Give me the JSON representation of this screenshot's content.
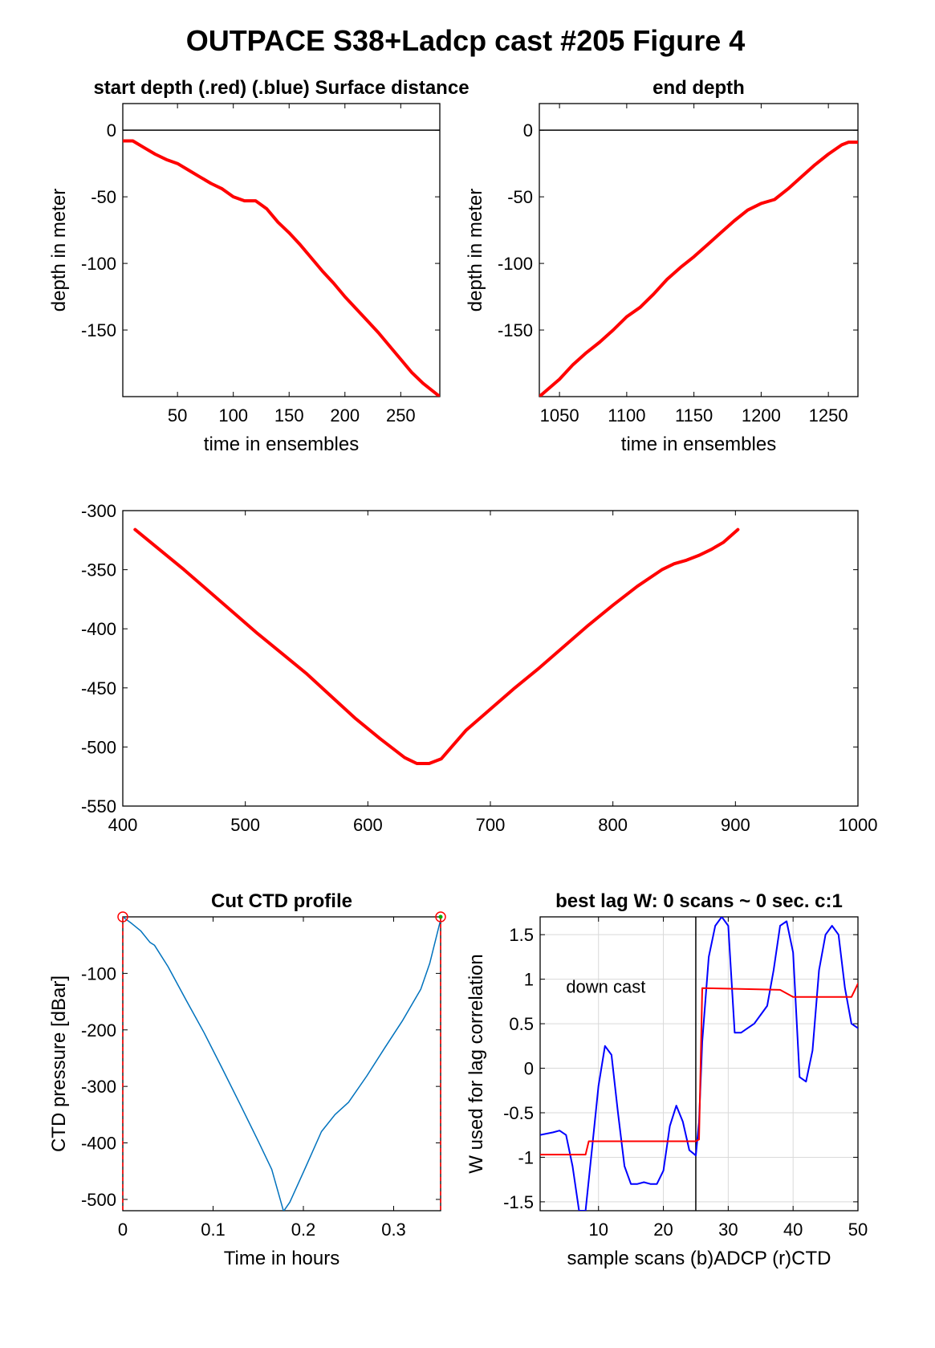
{
  "figure_title": "OUTPACE S38+Ladcp cast #205   Figure 4",
  "colors": {
    "red": "#ff0000",
    "blue": "#0000ff",
    "ctd": "#0072bd",
    "grid": "#d9d9d9",
    "green": "#00aa00"
  },
  "chart_data": [
    {
      "id": "p1",
      "type": "line",
      "title": "start depth (.red) (.blue) Surface distance",
      "xlabel": "time in ensembles",
      "ylabel": "depth in meter",
      "xlim": [
        1,
        285
      ],
      "ylim": [
        -200,
        20
      ],
      "xticks": [
        50,
        100,
        150,
        200,
        250
      ],
      "yticks": [
        0,
        -50,
        -100,
        -150
      ],
      "ref_line_y": 0,
      "series": [
        {
          "color": "red",
          "width": 4,
          "x": [
            1,
            10,
            20,
            30,
            40,
            50,
            60,
            70,
            80,
            90,
            100,
            110,
            120,
            130,
            140,
            150,
            160,
            170,
            180,
            190,
            200,
            210,
            220,
            230,
            240,
            250,
            260,
            270,
            285
          ],
          "y": [
            -8,
            -8,
            -13,
            -18,
            -22,
            -25,
            -30,
            -35,
            -40,
            -44,
            -50,
            -53,
            -53,
            -59,
            -69,
            -77,
            -86,
            -96,
            -106,
            -115,
            -125,
            -134,
            -143,
            -152,
            -162,
            -172,
            -182,
            -190,
            -200
          ]
        }
      ]
    },
    {
      "id": "p2",
      "type": "line",
      "title": "end depth",
      "xlabel": "time in ensembles",
      "ylabel": "depth in meter",
      "xlim": [
        1035,
        1272
      ],
      "ylim": [
        -200,
        20
      ],
      "xticks": [
        1050,
        1100,
        1150,
        1200,
        1250
      ],
      "yticks": [
        0,
        -50,
        -100,
        -150
      ],
      "ref_line_y": 0,
      "series": [
        {
          "color": "red",
          "width": 4,
          "x": [
            1035,
            1050,
            1060,
            1070,
            1080,
            1090,
            1100,
            1110,
            1120,
            1130,
            1140,
            1150,
            1160,
            1170,
            1180,
            1190,
            1200,
            1210,
            1220,
            1230,
            1240,
            1250,
            1260,
            1265,
            1272
          ],
          "y": [
            -200,
            -187,
            -176,
            -167,
            -159,
            -150,
            -140,
            -133,
            -123,
            -112,
            -103,
            -95,
            -86,
            -77,
            -68,
            -60,
            -55,
            -52,
            -44,
            -35,
            -26,
            -18,
            -11,
            -9,
            -9
          ]
        }
      ]
    },
    {
      "id": "p3",
      "type": "line",
      "title": "",
      "xlabel": "",
      "ylabel": "",
      "xlim": [
        400,
        1000
      ],
      "ylim": [
        -550,
        -300
      ],
      "xticks": [
        400,
        500,
        600,
        700,
        800,
        900,
        1000
      ],
      "yticks": [
        -300,
        -350,
        -400,
        -450,
        -500,
        -550
      ],
      "series": [
        {
          "color": "red",
          "width": 4,
          "x": [
            410,
            430,
            450,
            470,
            490,
            510,
            530,
            550,
            570,
            590,
            610,
            630,
            640,
            650,
            660,
            680,
            700,
            720,
            740,
            760,
            780,
            800,
            820,
            840,
            850,
            860,
            870,
            880,
            890,
            902
          ],
          "y": [
            -316,
            -333,
            -350,
            -368,
            -386,
            -404,
            -421,
            -438,
            -457,
            -476,
            -493,
            -509,
            -514,
            -514,
            -510,
            -486,
            -468,
            -450,
            -433,
            -415,
            -397,
            -380,
            -364,
            -350,
            -345,
            -342,
            -338,
            -333,
            -327,
            -316
          ]
        }
      ]
    },
    {
      "id": "p4",
      "type": "line",
      "title": "Cut CTD profile",
      "xlabel": "Time in hours",
      "ylabel": "CTD pressure [dBar]",
      "xlim": [
        0,
        0.352
      ],
      "ylim": [
        -520,
        0
      ],
      "xticks": [
        0,
        0.1,
        0.2,
        0.3
      ],
      "yticks": [
        -100,
        -200,
        -300,
        -400,
        -500
      ],
      "vlines": [
        0,
        0.352
      ],
      "markers": [
        {
          "x": 0,
          "y": 0,
          "color": "red"
        },
        {
          "x": 0.352,
          "y": 0,
          "color": "red"
        }
      ],
      "series": [
        {
          "color": "ctd",
          "width": 1.5,
          "x": [
            0,
            0.01,
            0.02,
            0.03,
            0.035,
            0.05,
            0.07,
            0.09,
            0.11,
            0.13,
            0.15,
            0.165,
            0.178,
            0.185,
            0.2,
            0.22,
            0.235,
            0.25,
            0.27,
            0.29,
            0.31,
            0.33,
            0.34,
            0.352
          ],
          "y": [
            0,
            -12,
            -25,
            -45,
            -50,
            -88,
            -147,
            -205,
            -268,
            -332,
            -397,
            -447,
            -521,
            -505,
            -452,
            -380,
            -350,
            -328,
            -282,
            -232,
            -183,
            -128,
            -82,
            -5
          ]
        }
      ]
    },
    {
      "id": "p5",
      "type": "line",
      "title": "best lag W: 0 scans ~ 0 sec.  c:1",
      "xlabel": "sample scans (b)ADCP (r)CTD",
      "ylabel": "W used for lag correlation",
      "xlim": [
        1,
        50
      ],
      "ylim": [
        -1.6,
        1.7
      ],
      "xticks": [
        10,
        20,
        30,
        40,
        50
      ],
      "yticks": [
        1.5,
        1,
        0.5,
        0,
        -0.5,
        -1,
        -1.5
      ],
      "grid": true,
      "vline_x": 25,
      "annotation": "down cast",
      "series": [
        {
          "color": "blue",
          "width": 2,
          "x": [
            1,
            3,
            4,
            5,
            6,
            7,
            8,
            9,
            10,
            11,
            12,
            13,
            14,
            15,
            16,
            17,
            18,
            19,
            20,
            21,
            22,
            23,
            24,
            25,
            25.5,
            26,
            27,
            28,
            29,
            30,
            31,
            32,
            33,
            34,
            35,
            36,
            37,
            38,
            39,
            40,
            41,
            42,
            43,
            44,
            45,
            46,
            47,
            48,
            49,
            50
          ],
          "y": [
            -0.75,
            -0.72,
            -0.7,
            -0.75,
            -1.1,
            -1.6,
            -1.6,
            -0.9,
            -0.2,
            0.25,
            0.15,
            -0.5,
            -1.1,
            -1.3,
            -1.3,
            -1.28,
            -1.3,
            -1.3,
            -1.15,
            -0.65,
            -0.42,
            -0.6,
            -0.92,
            -0.98,
            -0.6,
            0.3,
            1.25,
            1.6,
            1.7,
            1.6,
            0.4,
            0.4,
            0.45,
            0.5,
            0.6,
            0.7,
            1.1,
            1.6,
            1.65,
            1.3,
            -0.1,
            -0.15,
            0.2,
            1.1,
            1.5,
            1.6,
            1.5,
            0.9,
            0.5,
            0.45
          ]
        },
        {
          "color": "red",
          "width": 2,
          "x": [
            1,
            8,
            8.5,
            25,
            25.5,
            26,
            38,
            40,
            48,
            49,
            50
          ],
          "y": [
            -0.97,
            -0.97,
            -0.82,
            -0.82,
            -0.8,
            0.9,
            0.88,
            0.8,
            0.8,
            0.8,
            0.95
          ]
        }
      ]
    }
  ]
}
